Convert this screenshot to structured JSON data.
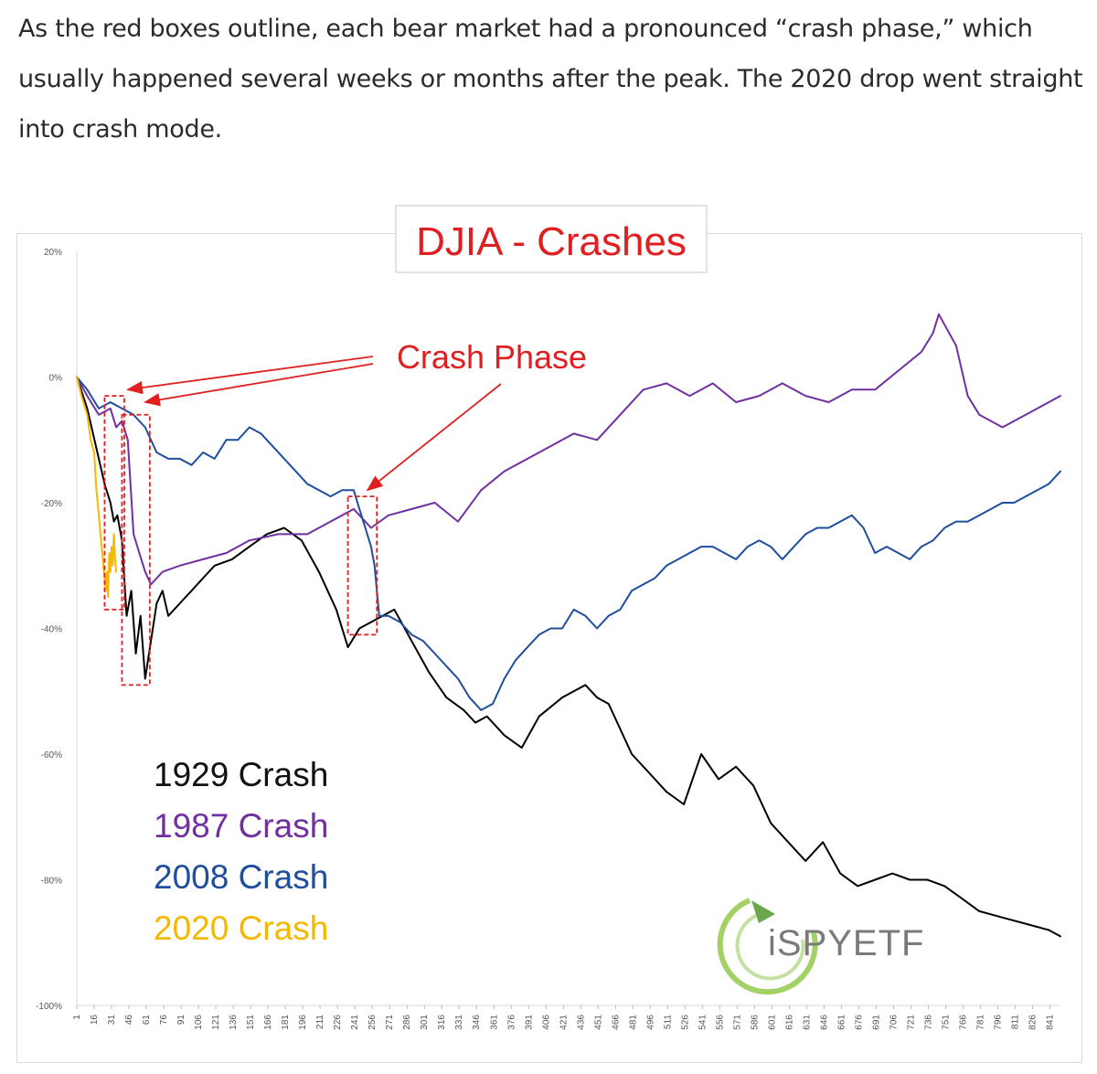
{
  "article": {
    "paragraph": "As the red boxes outline, each bear market had a pronounced “crash phase,” which usually happened several weeks or months after the peak. The 2020 drop went straight into crash mode."
  },
  "chart_data": {
    "type": "line",
    "title": "DJIA - Crashes",
    "ylim": [
      -100,
      20
    ],
    "y_ticks": [
      "20%",
      "0%",
      "-20%",
      "-40%",
      "-60%",
      "-80%",
      "-100%"
    ],
    "y_tick_values": [
      20,
      0,
      -20,
      -40,
      -60,
      -80,
      -100
    ],
    "x_ticks": [
      1,
      16,
      31,
      46,
      61,
      76,
      91,
      106,
      121,
      136,
      151,
      166,
      181,
      196,
      211,
      226,
      241,
      256,
      271,
      286,
      301,
      316,
      331,
      346,
      361,
      376,
      391,
      406,
      421,
      436,
      451,
      466,
      481,
      496,
      511,
      526,
      541,
      556,
      571,
      586,
      601,
      616,
      631,
      646,
      661,
      676,
      691,
      706,
      721,
      736,
      751,
      766,
      781,
      796,
      811,
      826,
      841
    ],
    "xlim": [
      1,
      850
    ],
    "grid": false,
    "legend_position": "bottom-left",
    "annotations": {
      "crash_phase_label": "Crash Phase",
      "boxes": [
        {
          "x": [
            25,
            42
          ],
          "y": [
            -37,
            -3
          ]
        },
        {
          "x": [
            40,
            64
          ],
          "y": [
            -49,
            -6
          ]
        },
        {
          "x": [
            235,
            260
          ],
          "y": [
            -41,
            -19
          ]
        }
      ],
      "arrows_to_days": [
        45,
        60,
        252
      ]
    },
    "logo_text": "iSPYETF",
    "series": [
      {
        "name": "1929 Crash",
        "color": "#000000",
        "x": [
          1,
          10,
          20,
          25,
          30,
          33,
          36,
          40,
          44,
          48,
          52,
          56,
          60,
          65,
          70,
          75,
          80,
          90,
          100,
          110,
          120,
          135,
          150,
          165,
          180,
          195,
          210,
          225,
          235,
          245,
          255,
          265,
          275,
          290,
          305,
          320,
          335,
          345,
          355,
          370,
          385,
          400,
          420,
          440,
          450,
          460,
          480,
          495,
          510,
          525,
          540,
          555,
          570,
          585,
          600,
          615,
          630,
          645,
          660,
          675,
          690,
          705,
          720,
          735,
          750,
          765,
          780,
          800,
          820,
          840,
          850
        ],
        "values": [
          0,
          -5,
          -13,
          -17,
          -20,
          -23,
          -22,
          -26,
          -38,
          -34,
          -44,
          -38,
          -48,
          -42,
          -36,
          -34,
          -38,
          -36,
          -34,
          -32,
          -30,
          -29,
          -27,
          -25,
          -24,
          -26,
          -31,
          -37,
          -43,
          -40,
          -39,
          -38,
          -37,
          -42,
          -47,
          -51,
          -53,
          -55,
          -54,
          -57,
          -59,
          -54,
          -51,
          -49,
          -51,
          -52,
          -60,
          -63,
          -66,
          -68,
          -60,
          -64,
          -62,
          -65,
          -71,
          -74,
          -77,
          -74,
          -79,
          -81,
          -80,
          -79,
          -80,
          -80,
          -81,
          -83,
          -85,
          -86,
          -87,
          -88,
          -89
        ]
      },
      {
        "name": "1987 Crash",
        "color": "#7030a0",
        "x": [
          1,
          10,
          20,
          30,
          35,
          40,
          45,
          50,
          55,
          60,
          65,
          75,
          90,
          110,
          130,
          150,
          175,
          200,
          220,
          240,
          255,
          270,
          290,
          310,
          330,
          350,
          370,
          390,
          410,
          430,
          450,
          470,
          490,
          510,
          530,
          550,
          570,
          590,
          610,
          630,
          650,
          670,
          690,
          710,
          730,
          740,
          745,
          760,
          770,
          780,
          790,
          800,
          810,
          820,
          830,
          840,
          850
        ],
        "values": [
          0,
          -3,
          -6,
          -5,
          -8,
          -7,
          -10,
          -25,
          -28,
          -31,
          -33,
          -31,
          -30,
          -29,
          -28,
          -26,
          -25,
          -25,
          -23,
          -21,
          -24,
          -22,
          -21,
          -20,
          -23,
          -18,
          -15,
          -13,
          -11,
          -9,
          -10,
          -6,
          -2,
          -1,
          -3,
          -1,
          -4,
          -3,
          -1,
          -3,
          -4,
          -2,
          -2,
          1,
          4,
          7,
          10,
          5,
          -3,
          -6,
          -7,
          -8,
          -7,
          -6,
          -5,
          -4,
          -3
        ]
      },
      {
        "name": "2008 Crash",
        "color": "#1f4e9c",
        "x": [
          1,
          10,
          20,
          30,
          40,
          50,
          60,
          70,
          80,
          90,
          100,
          110,
          120,
          130,
          140,
          150,
          160,
          170,
          180,
          190,
          200,
          210,
          220,
          230,
          240,
          245,
          250,
          255,
          258,
          262,
          270,
          280,
          290,
          300,
          310,
          320,
          330,
          340,
          350,
          360,
          370,
          380,
          390,
          400,
          410,
          420,
          430,
          440,
          450,
          460,
          470,
          480,
          490,
          500,
          510,
          520,
          530,
          540,
          550,
          560,
          570,
          580,
          590,
          600,
          610,
          620,
          630,
          640,
          650,
          660,
          670,
          680,
          690,
          700,
          710,
          720,
          730,
          740,
          750,
          760,
          770,
          780,
          790,
          800,
          810,
          820,
          830,
          840,
          850
        ],
        "values": [
          0,
          -2,
          -5,
          -4,
          -5,
          -6,
          -8,
          -12,
          -13,
          -13,
          -14,
          -12,
          -13,
          -10,
          -10,
          -8,
          -9,
          -11,
          -13,
          -15,
          -17,
          -18,
          -19,
          -18,
          -18,
          -21,
          -24,
          -27,
          -30,
          -38,
          -38,
          -39,
          -41,
          -42,
          -44,
          -46,
          -48,
          -51,
          -53,
          -52,
          -48,
          -45,
          -43,
          -41,
          -40,
          -40,
          -37,
          -38,
          -40,
          -38,
          -37,
          -34,
          -33,
          -32,
          -30,
          -29,
          -28,
          -27,
          -27,
          -28,
          -29,
          -27,
          -26,
          -27,
          -29,
          -27,
          -25,
          -24,
          -24,
          -23,
          -22,
          -24,
          -28,
          -27,
          -28,
          -29,
          -27,
          -26,
          -24,
          -23,
          -23,
          -22,
          -21,
          -20,
          -20,
          -19,
          -18,
          -17,
          -15
        ]
      },
      {
        "name": "2020 Crash",
        "color": "#f5b800",
        "x": [
          1,
          5,
          10,
          13,
          16,
          18,
          20,
          22,
          24,
          25,
          26,
          27,
          28,
          29,
          30,
          31,
          32,
          33,
          34,
          35
        ],
        "values": [
          0,
          -3,
          -6,
          -10,
          -12,
          -18,
          -22,
          -26,
          -30,
          -32,
          -34,
          -31,
          -35,
          -28,
          -31,
          -27,
          -30,
          -25,
          -29,
          -31
        ]
      }
    ]
  }
}
